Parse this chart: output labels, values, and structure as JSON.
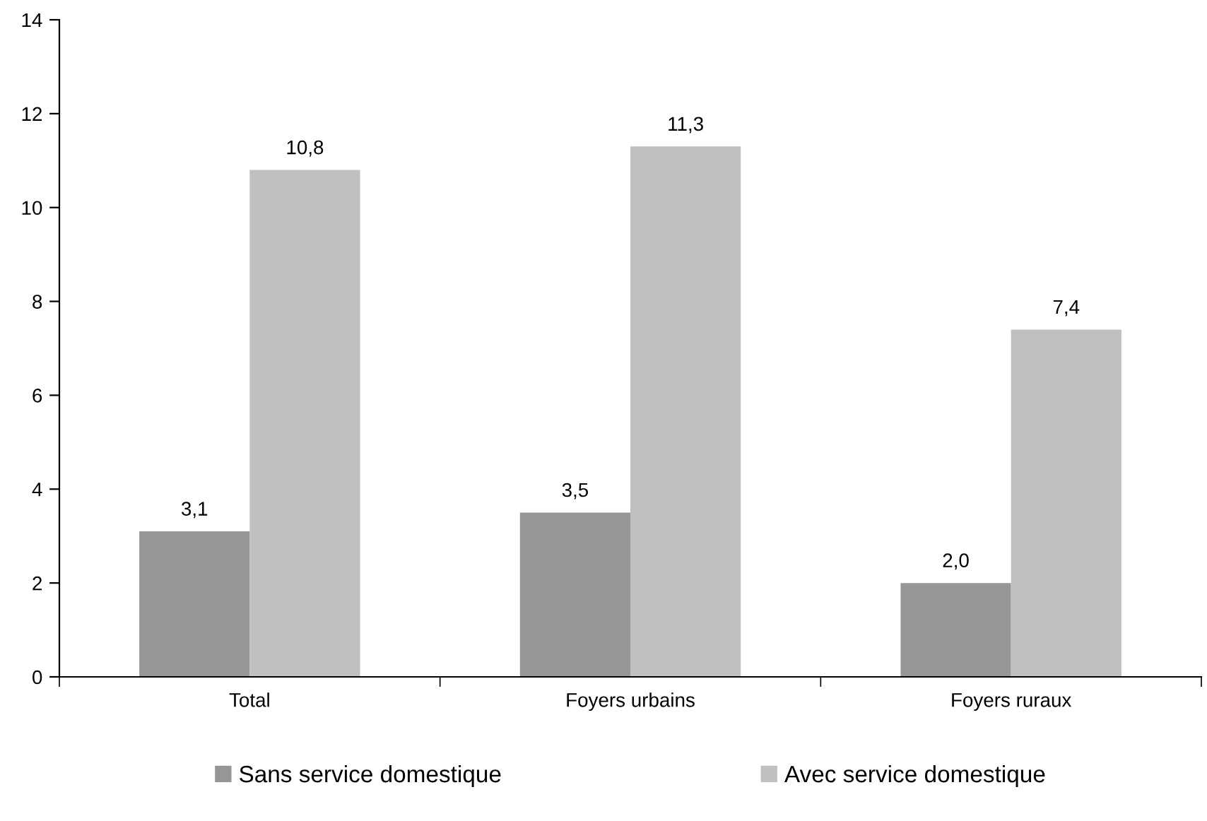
{
  "chart_data": {
    "type": "bar",
    "categories": [
      "Total",
      "Foyers urbains",
      "Foyers ruraux"
    ],
    "series": [
      {
        "name": "Sans service domestique",
        "color": "#969696",
        "values": [
          3.1,
          3.5,
          2.0
        ],
        "value_labels": [
          "3,1",
          "3,5",
          "2,0"
        ]
      },
      {
        "name": "Avec service domestique",
        "color": "#c0c0c0",
        "values": [
          10.8,
          11.3,
          7.4
        ],
        "value_labels": [
          "10,8",
          "11,3",
          "7,4"
        ]
      }
    ],
    "ylim": [
      0,
      14
    ],
    "yticks": [
      0,
      2,
      4,
      6,
      8,
      10,
      12,
      14
    ],
    "grid": false,
    "legend": "bottom"
  }
}
